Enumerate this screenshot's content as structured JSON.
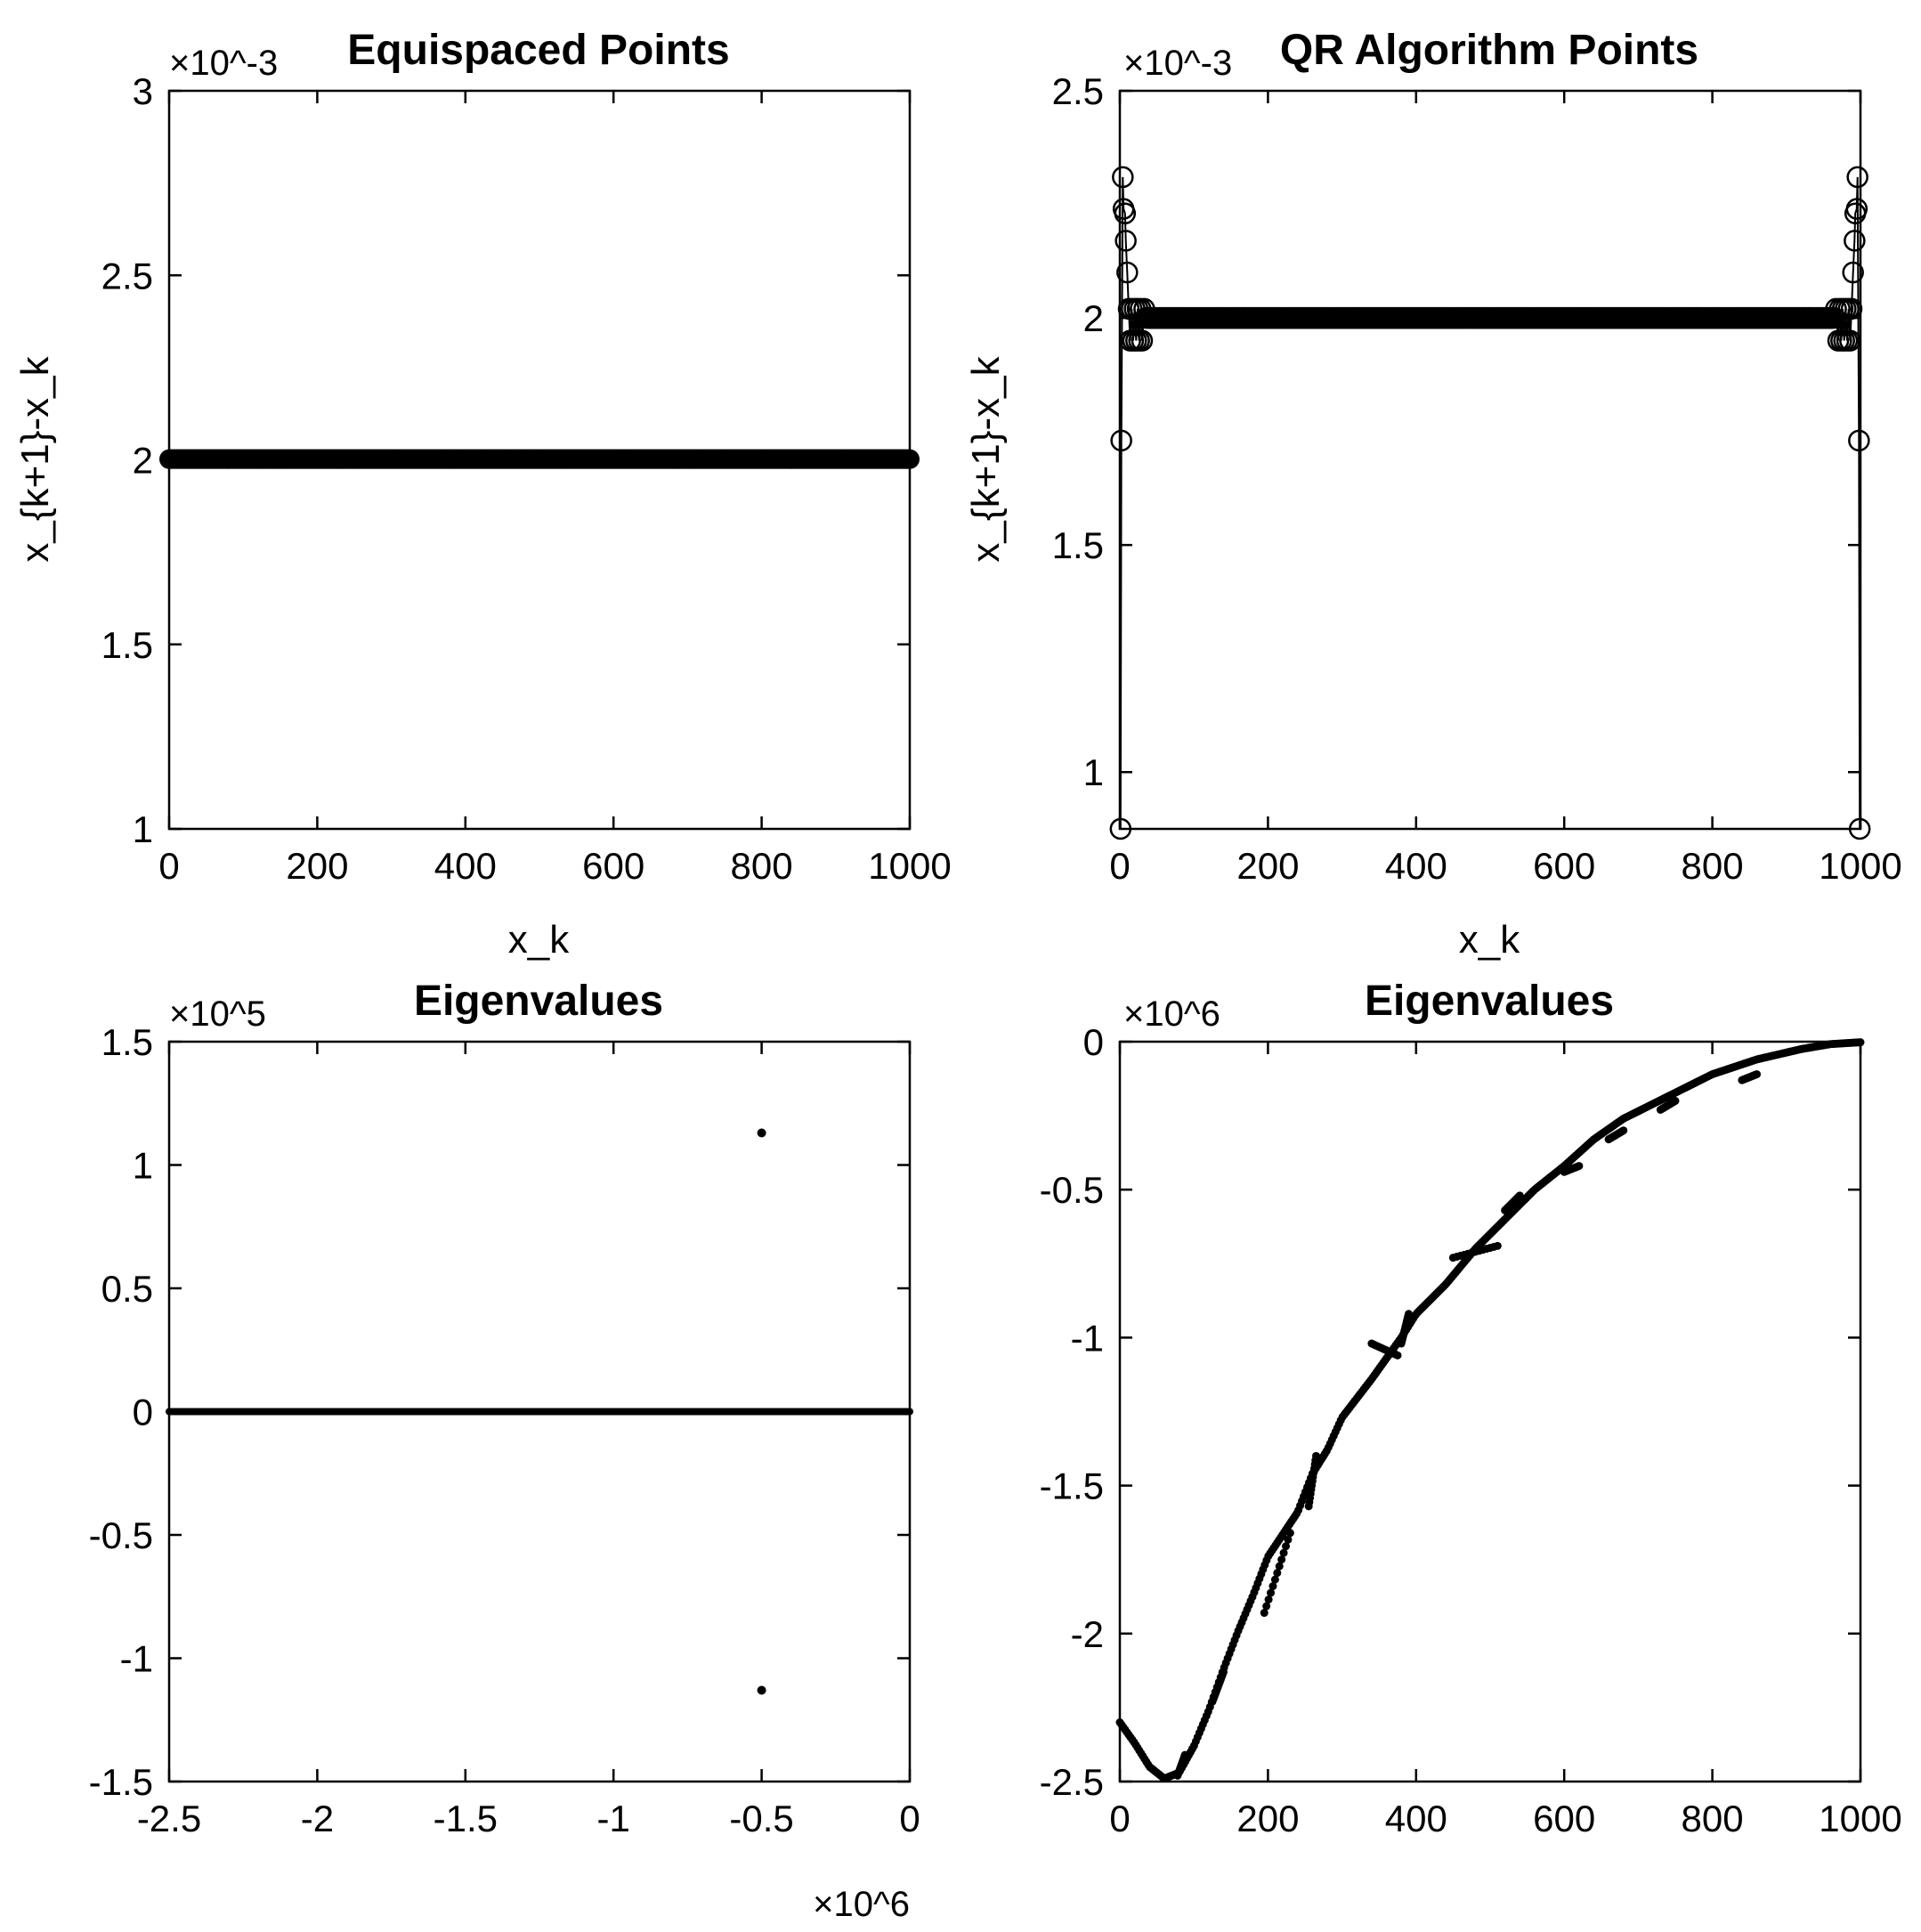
{
  "chart_data": [
    {
      "type": "scatter",
      "title": "Equispaced Points",
      "xlabel": "x_k",
      "ylabel": "x_{k+1}-x_k",
      "xlim": [
        0,
        1000
      ],
      "ylim": [
        1,
        3
      ],
      "y_multiplier": "×10^-3",
      "xticks": [
        0,
        200,
        400,
        600,
        800,
        1000
      ],
      "yticks": [
        1,
        1.5,
        2,
        2.5,
        3
      ],
      "xtick_labels": [
        "0",
        "200",
        "400",
        "600",
        "800",
        "1000"
      ],
      "ytick_labels": [
        "1",
        "1.5",
        "2",
        "2.5",
        "3"
      ],
      "marker": "filled-circle",
      "series": [
        {
          "x_range": [
            0,
            1000
          ],
          "y": 2.002,
          "count": 500
        }
      ]
    },
    {
      "type": "scatter",
      "title": "QR Algorithm Points",
      "xlabel": "x_k",
      "ylabel": "x_{k+1}-x_k",
      "xlim": [
        0,
        1000
      ],
      "ylim": [
        0.875,
        2.5
      ],
      "y_multiplier": "×10^-3",
      "xticks": [
        0,
        200,
        400,
        600,
        800,
        1000
      ],
      "yticks": [
        1,
        1.5,
        2,
        2.5
      ],
      "xtick_labels": [
        "0",
        "200",
        "400",
        "600",
        "800",
        "1000"
      ],
      "ytick_labels": [
        "1",
        "1.5",
        "2",
        "2.5"
      ],
      "marker": "open-circle",
      "series": [
        {
          "bulk": {
            "x_range": [
              40,
              960
            ],
            "y": 2.0,
            "count": 460
          },
          "edge_points": [
            [
              1,
              0.875
            ],
            [
              2,
              1.73
            ],
            [
              4,
              2.31
            ],
            [
              5,
              2.24
            ],
            [
              7,
              2.23
            ],
            [
              8,
              2.17
            ],
            [
              10,
              2.1
            ],
            [
              12,
              2.02
            ],
            [
              14,
              1.95
            ],
            [
              16,
              2.02
            ],
            [
              18,
              1.95
            ],
            [
              20,
              2.02
            ],
            [
              22,
              1.95
            ],
            [
              24,
              2.02
            ],
            [
              26,
              1.95
            ],
            [
              28,
              2.02
            ],
            [
              30,
              1.95
            ],
            [
              33,
              2.02
            ],
            [
              36,
              2.0
            ],
            [
              40,
              2.0
            ],
            [
              960,
              2.0
            ],
            [
              964,
              2.0
            ],
            [
              967,
              2.02
            ],
            [
              970,
              1.95
            ],
            [
              972,
              2.02
            ],
            [
              974,
              1.95
            ],
            [
              976,
              2.02
            ],
            [
              978,
              1.95
            ],
            [
              980,
              2.02
            ],
            [
              982,
              1.95
            ],
            [
              984,
              2.02
            ],
            [
              986,
              1.95
            ],
            [
              988,
              2.02
            ],
            [
              990,
              2.1
            ],
            [
              992,
              2.17
            ],
            [
              993,
              2.23
            ],
            [
              995,
              2.24
            ],
            [
              996,
              2.31
            ],
            [
              998,
              1.73
            ],
            [
              999,
              0.875
            ]
          ]
        }
      ]
    },
    {
      "type": "scatter",
      "title": "Eigenvalues",
      "xlabel": "",
      "ylabel": "",
      "xlim": [
        -2500000,
        0
      ],
      "ylim": [
        -150000,
        150000
      ],
      "x_multiplier": "×10^6",
      "y_multiplier": "×10^5",
      "xticks": [
        -2500000,
        -2000000,
        -1500000,
        -1000000,
        -500000,
        0
      ],
      "yticks": [
        -150000,
        -100000,
        -50000,
        0,
        50000,
        100000,
        150000
      ],
      "xtick_labels": [
        "-2.5",
        "-2",
        "-1.5",
        "-1",
        "-0.5",
        "0"
      ],
      "ytick_labels": [
        "-1.5",
        "-1",
        "-0.5",
        "0",
        "0.5",
        "1",
        "1.5"
      ],
      "marker": "dot",
      "series": [
        {
          "real_axis": {
            "x_range": [
              -2500000,
              0
            ],
            "y": 0,
            "count": 600
          },
          "points": [
            [
              -500000,
              113000
            ],
            [
              -500000,
              -113000
            ]
          ]
        }
      ]
    },
    {
      "type": "scatter",
      "title": "Eigenvalues",
      "xlabel": "",
      "ylabel": "",
      "xlim": [
        0,
        1000
      ],
      "ylim": [
        -2500000,
        0
      ],
      "y_multiplier": "×10^6",
      "xticks": [
        0,
        200,
        400,
        600,
        800,
        1000
      ],
      "yticks": [
        -2500000,
        -2000000,
        -1500000,
        -1000000,
        -500000,
        0
      ],
      "xtick_labels": [
        "0",
        "200",
        "400",
        "600",
        "800",
        "1000"
      ],
      "ytick_labels": [
        "-2.5",
        "-2",
        "-1.5",
        "-1",
        "-0.5",
        "0"
      ],
      "marker": "dot",
      "series": [
        {
          "curve": [
            [
              0,
              -2300000
            ],
            [
              20,
              -2370000
            ],
            [
              40,
              -2450000
            ],
            [
              60,
              -2490000
            ],
            [
              80,
              -2470000
            ],
            [
              100,
              -2380000
            ],
            [
              120,
              -2260000
            ],
            [
              140,
              -2120000
            ],
            [
              160,
              -1990000
            ],
            [
              180,
              -1870000
            ],
            [
              200,
              -1740000
            ],
            [
              240,
              -1590000
            ],
            [
              260,
              -1460000
            ],
            [
              280,
              -1380000
            ],
            [
              300,
              -1270000
            ],
            [
              340,
              -1140000
            ],
            [
              380,
              -1000000
            ],
            [
              400,
              -920000
            ],
            [
              440,
              -820000
            ],
            [
              480,
              -700000
            ],
            [
              520,
              -600000
            ],
            [
              560,
              -500000
            ],
            [
              600,
              -420000
            ],
            [
              640,
              -330000
            ],
            [
              680,
              -260000
            ],
            [
              720,
              -210000
            ],
            [
              760,
              -160000
            ],
            [
              800,
              -110000
            ],
            [
              860,
              -60000
            ],
            [
              920,
              -25000
            ],
            [
              960,
              -8000
            ],
            [
              1000,
              -2000
            ]
          ],
          "count": 420,
          "branch_segments": [
            [
              [
                78,
                -2480000
              ],
              [
                88,
                -2410000
              ]
            ],
            [
              [
                125,
                -2230000
              ],
              [
                140,
                -2130000
              ]
            ],
            [
              [
                195,
                -1930000
              ],
              [
                230,
                -1660000
              ]
            ],
            [
              [
                255,
                -1570000
              ],
              [
                265,
                -1400000
              ]
            ],
            [
              [
                340,
                -1020000
              ],
              [
                375,
                -1060000
              ]
            ],
            [
              [
                380,
                -1020000
              ],
              [
                390,
                -920000
              ]
            ],
            [
              [
                450,
                -730000
              ],
              [
                510,
                -690000
              ]
            ],
            [
              [
                520,
                -570000
              ],
              [
                540,
                -520000
              ]
            ],
            [
              [
                600,
                -440000
              ],
              [
                620,
                -420000
              ]
            ],
            [
              [
                660,
                -330000
              ],
              [
                680,
                -300000
              ]
            ],
            [
              [
                730,
                -230000
              ],
              [
                750,
                -200000
              ]
            ],
            [
              [
                840,
                -130000
              ],
              [
                860,
                -110000
              ]
            ]
          ]
        }
      ]
    }
  ]
}
